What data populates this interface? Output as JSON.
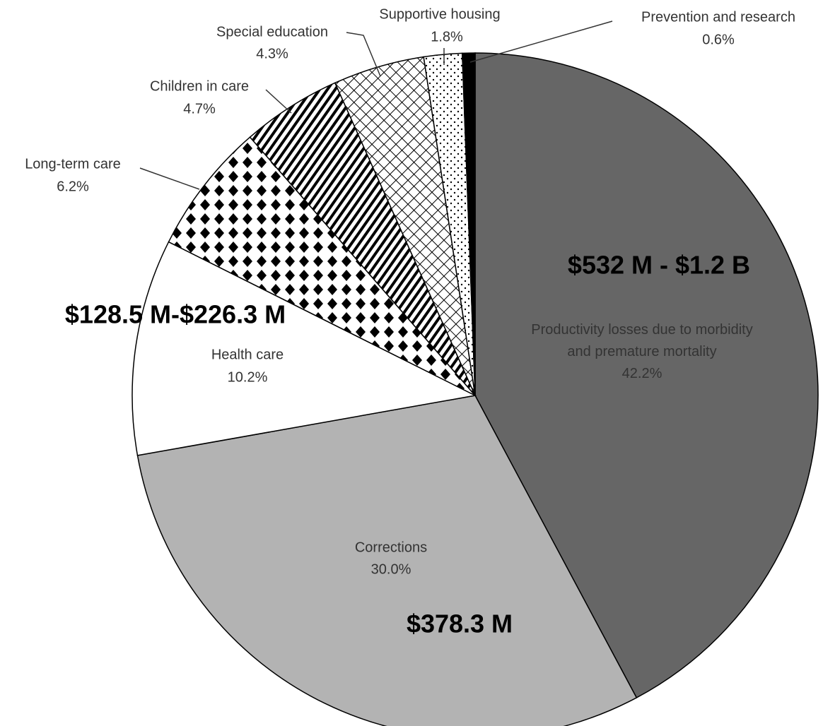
{
  "chart_data": {
    "type": "pie",
    "categories": [
      "Productivity losses due to morbidity and premature mortality",
      "Corrections",
      "Health care",
      "Long-term care",
      "Children in care",
      "Special education",
      "Supportive housing",
      "Prevention and research"
    ],
    "values": [
      42.2,
      30.0,
      10.2,
      6.2,
      4.7,
      4.3,
      1.8,
      0.6
    ],
    "value_labels": [
      "42.2%",
      "30.0%",
      "10.2%",
      "6.2%",
      "4.7%",
      "4.3%",
      "1.8%",
      "0.6%"
    ],
    "colors": [
      "#666666",
      "#b3b3b3",
      "#ffffff",
      "#000000",
      "#000000",
      "#000000",
      "#000000",
      "#000000"
    ],
    "annotations": [
      "$532 M - $1.2 B",
      "$128.5 M-$226.3 M",
      "$378.3 M"
    ]
  }
}
